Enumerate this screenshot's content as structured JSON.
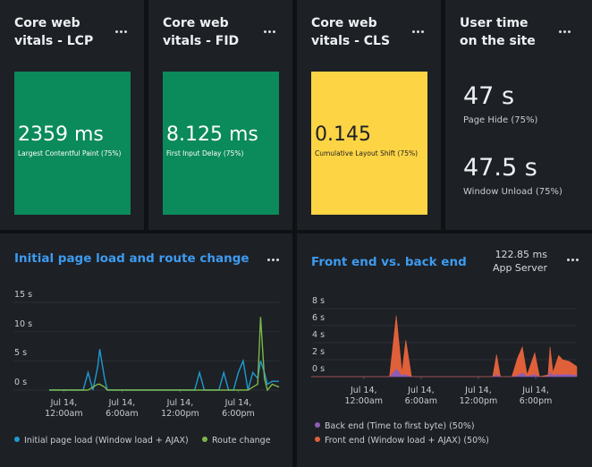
{
  "tiles": [
    {
      "title": "Core web vitals - LCP",
      "value": "2359 ms",
      "label": "Largest Contentful Paint (75%)",
      "color": "#0b8a5b",
      "text_color": "#ffffff"
    },
    {
      "title": "Core web vitals - FID",
      "value": "8.125 ms",
      "label": "First Input Delay (75%)",
      "color": "#0b8a5b",
      "text_color": "#ffffff"
    },
    {
      "title": "Core web vitals - CLS",
      "value": "0.145",
      "label": "Cumulative Layout Shift (75%)",
      "color": "#fdd444",
      "text_color": "#1d2025"
    }
  ],
  "user_time": {
    "title": "User time on the site",
    "metrics": [
      {
        "value": "47 s",
        "label": "Page Hide (75%)"
      },
      {
        "value": "47.5 s",
        "label": "Window Unload (75%)"
      }
    ]
  },
  "chart_data": [
    {
      "type": "line",
      "title": "Initial page load and route change",
      "x": [
        -1.5,
        2,
        2.5,
        3,
        3.5,
        3.7,
        4.2,
        4.5,
        5,
        13,
        13.5,
        14,
        14.5,
        15,
        16,
        16.5,
        17,
        17.5,
        18,
        18.5,
        19,
        19.5,
        20,
        20.3,
        20.7,
        21,
        21.5,
        22.2
      ],
      "xlim": [
        -5.2,
        22.2
      ],
      "xticks": [
        {
          "value": 0,
          "label": "Jul 14, 12:00am"
        },
        {
          "value": 6,
          "label": "Jul 14, 6:00am"
        },
        {
          "value": 12,
          "label": "Jul 14, 12:00pm"
        },
        {
          "value": 18,
          "label": "Jul 14, 6:00pm"
        }
      ],
      "ylim": [
        0,
        16.5
      ],
      "yticks": [
        {
          "value": 15,
          "label": "15 s"
        },
        {
          "value": 10,
          "label": "10 s"
        },
        {
          "value": 5,
          "label": "5 s"
        },
        {
          "value": 0,
          "label": "0 s"
        }
      ],
      "grid": true,
      "series": [
        {
          "name": "Initial page load (Window load + AJAX)",
          "color": "#1e9ad0",
          "values": [
            0,
            0,
            3,
            0,
            4,
            7,
            2,
            0,
            0,
            0,
            0,
            3,
            0,
            0,
            0,
            3,
            0,
            0,
            3,
            5,
            0,
            3,
            2,
            5,
            3,
            1,
            1.5,
            1.5
          ]
        },
        {
          "name": "Route change",
          "color": "#7cb649",
          "values": [
            0,
            0,
            0,
            0.5,
            1,
            1,
            0.5,
            0,
            0,
            0,
            0,
            0,
            0,
            0,
            0,
            0,
            0,
            0,
            0,
            0,
            0,
            0.5,
            1,
            12.5,
            2,
            0,
            1,
            0.5
          ]
        }
      ]
    },
    {
      "type": "area",
      "stacked": true,
      "title": "Front end vs. back end",
      "summary_value": "122.85 ms",
      "summary_label": "App Server",
      "x": [
        -5.5,
        2.7,
        3.4,
        4.0,
        4.4,
        5.0,
        13.5,
        13.9,
        14.3,
        15.5,
        16.1,
        16.6,
        17.1,
        17.9,
        18.4,
        19.3,
        19.5,
        19.8,
        20.4,
        20.8,
        21.5,
        22.3
      ],
      "xlim": [
        -5.5,
        22.3
      ],
      "xticks": [
        {
          "value": 0,
          "label": "Jul 14, 12:00am"
        },
        {
          "value": 6,
          "label": "Jul 14, 6:00am"
        },
        {
          "value": 12,
          "label": "Jul 14, 12:00pm"
        },
        {
          "value": 18,
          "label": "Jul 14, 6:00pm"
        }
      ],
      "ylim": [
        0,
        8.5
      ],
      "yticks": [
        {
          "value": 8,
          "label": "8 s"
        },
        {
          "value": 6,
          "label": "6 s"
        },
        {
          "value": 4,
          "label": "4 s"
        },
        {
          "value": 2,
          "label": "2 s"
        },
        {
          "value": 0,
          "label": "0 s"
        }
      ],
      "grid": true,
      "series": [
        {
          "name": "Back end (Time to first byte) (50%)",
          "color": "#8e5bb5",
          "values": [
            0,
            0,
            1,
            0.2,
            0.3,
            0,
            0,
            0.3,
            0,
            0,
            0.2,
            0.5,
            0.1,
            0.3,
            0,
            0.1,
            0.6,
            0.2,
            0.3,
            0.3,
            0.3,
            0.2
          ]
        },
        {
          "name": "Front end (Window load + AJAX) (50%)",
          "color": "#e0603a",
          "values": [
            0,
            0,
            6.2,
            0.3,
            4.0,
            0,
            0,
            2.3,
            0,
            0,
            2.0,
            3.0,
            0.1,
            2.5,
            0,
            0.1,
            2.9,
            0.3,
            2.2,
            1.7,
            1.5,
            1.0
          ]
        }
      ]
    }
  ]
}
